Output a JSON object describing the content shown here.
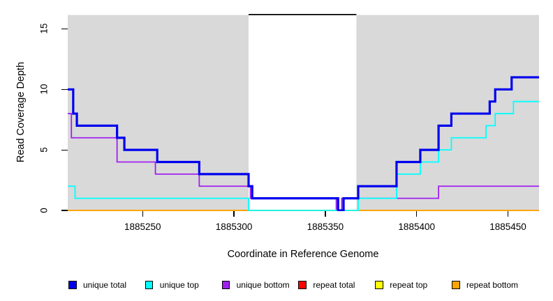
{
  "chart_data": {
    "type": "line",
    "step": true,
    "title": "",
    "xlabel": "Coordinate in Reference Genome",
    "ylabel": "Read Coverage Depth",
    "xlim": [
      1885209,
      1885467
    ],
    "ylim": [
      0,
      16.2
    ],
    "x_ticks": [
      1885250,
      1885300,
      1885350,
      1885400,
      1885450
    ],
    "y_ticks": [
      0,
      5,
      10,
      15
    ],
    "grid": false,
    "legend_position": "bottom",
    "plot_background": "#FFFFFF",
    "shaded_region_color": "#D9D9D9",
    "shaded_regions": [
      {
        "from": 1885209,
        "to": 1885308
      },
      {
        "from": 1885367,
        "to": 1885467
      }
    ],
    "masked_region_cap": {
      "from": 1885308,
      "to": 1885367,
      "color": "#000000"
    },
    "series": [
      {
        "name": "repeat total",
        "color": "#FF0000",
        "width": 1.3,
        "points": [
          [
            1885209,
            0
          ],
          [
            1885467,
            0
          ]
        ]
      },
      {
        "name": "repeat top",
        "color": "#FFFF00",
        "width": 1.3,
        "points": [
          [
            1885209,
            0
          ],
          [
            1885467,
            0
          ]
        ]
      },
      {
        "name": "repeat bottom",
        "color": "#FFA500",
        "width": 2,
        "points": [
          [
            1885209,
            0
          ],
          [
            1885467,
            0
          ]
        ]
      },
      {
        "name": "unique bottom",
        "color": "#A020F0",
        "width": 1.8,
        "points": [
          [
            1885209,
            8
          ],
          [
            1885211,
            6
          ],
          [
            1885236,
            4
          ],
          [
            1885257,
            3
          ],
          [
            1885281,
            2
          ],
          [
            1885309,
            1
          ],
          [
            1885356,
            0
          ],
          [
            1885359,
            1
          ],
          [
            1885412,
            2
          ],
          [
            1885467,
            2
          ]
        ]
      },
      {
        "name": "unique top",
        "color": "#00FFFF",
        "width": 1.8,
        "points": [
          [
            1885209,
            2
          ],
          [
            1885213,
            1
          ],
          [
            1885308,
            0
          ],
          [
            1885368,
            1
          ],
          [
            1885389,
            3
          ],
          [
            1885402,
            4
          ],
          [
            1885412,
            5
          ],
          [
            1885419,
            6
          ],
          [
            1885438,
            7
          ],
          [
            1885443,
            8
          ],
          [
            1885453,
            9
          ],
          [
            1885467,
            9
          ]
        ]
      },
      {
        "name": "unique total",
        "color": "#0000EE",
        "width": 3.2,
        "points": [
          [
            1885209,
            10
          ],
          [
            1885212,
            8
          ],
          [
            1885214,
            7
          ],
          [
            1885236,
            6
          ],
          [
            1885240,
            5
          ],
          [
            1885258,
            4
          ],
          [
            1885281,
            3
          ],
          [
            1885308,
            2
          ],
          [
            1885310,
            1
          ],
          [
            1885357,
            0
          ],
          [
            1885360,
            1
          ],
          [
            1885368,
            2
          ],
          [
            1885389,
            4
          ],
          [
            1885402,
            5
          ],
          [
            1885412,
            7
          ],
          [
            1885419,
            8
          ],
          [
            1885440,
            9
          ],
          [
            1885443,
            10
          ],
          [
            1885452,
            11
          ],
          [
            1885467,
            11
          ]
        ]
      }
    ]
  },
  "legend": {
    "items": [
      {
        "label": "unique total",
        "color": "#0000EE"
      },
      {
        "label": "unique top",
        "color": "#00FFFF"
      },
      {
        "label": "unique bottom",
        "color": "#A020F0"
      },
      {
        "label": "repeat total",
        "color": "#FF0000"
      },
      {
        "label": "repeat top",
        "color": "#FFFF00"
      },
      {
        "label": "repeat bottom",
        "color": "#FFA500"
      }
    ]
  }
}
